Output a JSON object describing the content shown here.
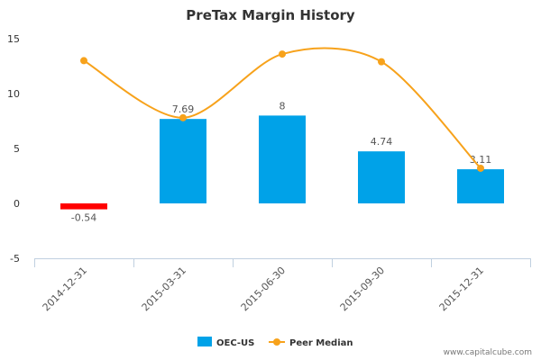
{
  "chart_data": {
    "type": "bar",
    "title": "PreTax Margin History",
    "categories": [
      "2014-12-31",
      "2015-03-31",
      "2015-06-30",
      "2015-09-30",
      "2015-12-31"
    ],
    "series": [
      {
        "name": "OEC-US",
        "type": "bar",
        "values": [
          -0.54,
          7.69,
          8,
          4.74,
          3.11
        ],
        "labels": [
          "-0.54",
          "7.69",
          "8",
          "4.74",
          "3.11"
        ],
        "color": "#00a2e8",
        "negative_color": "#ff0000"
      },
      {
        "name": "Peer Median",
        "type": "line",
        "values": [
          13.0,
          7.8,
          13.6,
          12.9,
          3.2
        ],
        "color": "#f7a21b"
      }
    ],
    "ylim": [
      -5,
      15
    ],
    "yticks": [
      "-5",
      "0",
      "5",
      "10",
      "15"
    ],
    "grid": false,
    "legend": "bottom-center"
  },
  "credit": "www.capitalcube.com"
}
